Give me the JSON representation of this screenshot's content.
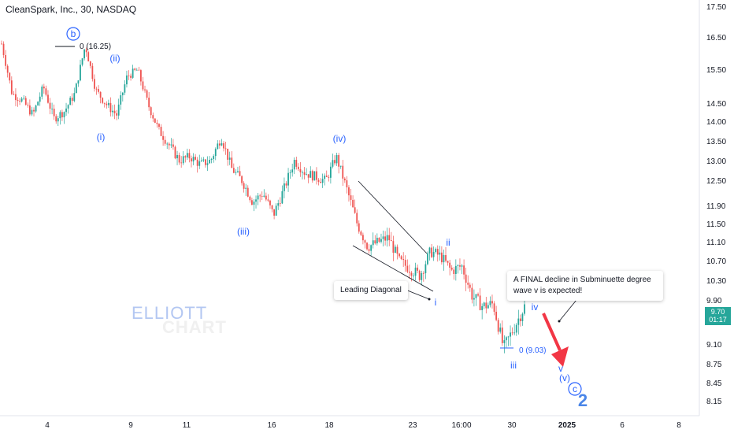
{
  "header": {
    "title": "CleanSpark, Inc., 30, NASDAQ"
  },
  "watermark": {
    "line1": "ELLIOTT",
    "line2": "CHART"
  },
  "price_tag": {
    "price": "9.70",
    "timer": "01:17",
    "color": "#26a69a"
  },
  "notes": {
    "leading_diagonal": "Leading Diagonal",
    "final_decline": "A FINAL decline in Subminuette degree wave v is expected!"
  },
  "chart_data": {
    "type": "candlestick",
    "title": "CleanSpark, Inc., 30, NASDAQ",
    "y_ticks": [
      "17.50",
      "16.50",
      "15.50",
      "14.50",
      "14.00",
      "13.50",
      "13.00",
      "12.50",
      "11.90",
      "11.50",
      "11.10",
      "10.70",
      "10.30",
      "9.90",
      "9.10",
      "8.75",
      "8.45",
      "8.15"
    ],
    "x_ticks": [
      "4",
      "9",
      "11",
      "16",
      "18",
      "23",
      "16:00",
      "30",
      "2025",
      "6",
      "8"
    ],
    "ylim": [
      8.0,
      17.8
    ],
    "y_scale": "log",
    "up_color": "#26a69a",
    "down_color": "#ef5350",
    "wave_color": "#2962ff",
    "price_path": [
      16.3,
      14.8,
      14.6,
      14.2,
      15.0,
      14.1,
      14.3,
      14.8,
      16.25,
      14.9,
      14.5,
      14.2,
      15.3,
      15.5,
      14.5,
      13.8,
      13.4,
      13.0,
      13.1,
      12.9,
      13.0,
      13.6,
      12.8,
      12.5,
      12.0,
      12.2,
      11.7,
      12.3,
      13.0,
      12.7,
      12.6,
      12.5,
      13.1,
      12.3,
      11.5,
      11.0,
      11.1,
      11.2,
      10.7,
      10.55,
      10.4,
      10.9,
      10.8,
      10.5,
      10.6,
      10.0,
      9.8,
      9.85,
      9.03,
      9.4,
      9.8
    ],
    "wave_labels": [
      "b",
      "0 (16.25)",
      "(ii)",
      "(i)",
      "(iii)",
      "(iv)",
      "i",
      "ii",
      "iii",
      "iv",
      "0 (9.03)",
      "v",
      "(v)",
      "c",
      "2"
    ],
    "projection": {
      "from": 9.75,
      "to": 8.95
    }
  }
}
